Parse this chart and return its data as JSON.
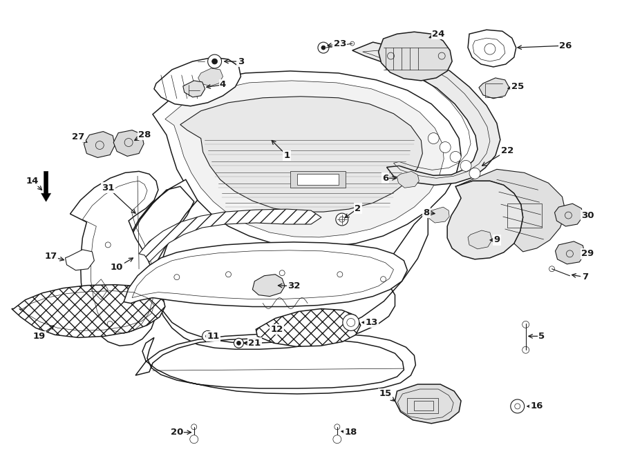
{
  "bg_color": "#ffffff",
  "line_color": "#1a1a1a",
  "text_color": "#000000",
  "fig_width": 9.0,
  "fig_height": 6.61,
  "dpi": 100,
  "lw_main": 1.1,
  "lw_med": 0.8,
  "lw_thin": 0.5,
  "label_fontsize": 9.5,
  "label_bold": true
}
